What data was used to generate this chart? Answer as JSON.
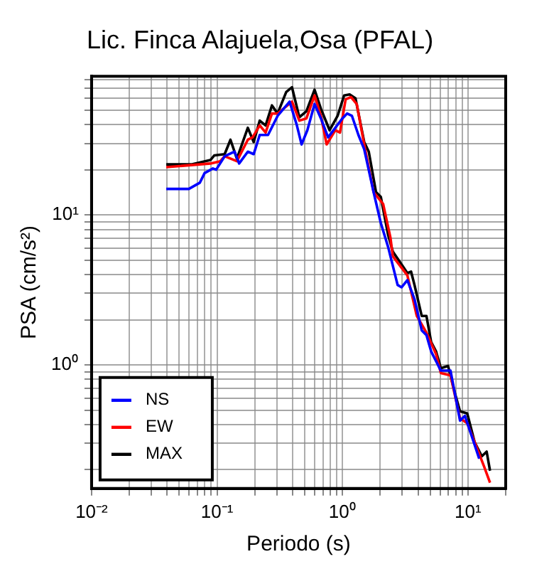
{
  "chart_data": {
    "type": "line",
    "title": "Lic. Finca Alajuela,Osa (PFAL)",
    "xlabel": "Periodo (s)",
    "ylabel": "PSA (cm/s²)",
    "log": "xy",
    "grid": true,
    "legend": "bottom left",
    "xlim": [
      0.01,
      20
    ],
    "ylim": [
      0.15,
      84
    ],
    "xticks": [
      {
        "value": 0.01,
        "label": "10⁻²"
      },
      {
        "value": 0.02,
        "label": null
      },
      {
        "value": 0.03,
        "label": null
      },
      {
        "value": 0.04,
        "label": null
      },
      {
        "value": 0.05,
        "label": null
      },
      {
        "value": 0.06,
        "label": null
      },
      {
        "value": 0.07,
        "label": null
      },
      {
        "value": 0.08,
        "label": null
      },
      {
        "value": 0.09,
        "label": null
      },
      {
        "value": 0.1,
        "label": "10⁻¹"
      },
      {
        "value": 0.2,
        "label": null
      },
      {
        "value": 0.3,
        "label": null
      },
      {
        "value": 0.4,
        "label": null
      },
      {
        "value": 0.5,
        "label": null
      },
      {
        "value": 0.6,
        "label": null
      },
      {
        "value": 0.7,
        "label": null
      },
      {
        "value": 0.8,
        "label": null
      },
      {
        "value": 0.9,
        "label": null
      },
      {
        "value": 1,
        "label": "10⁰"
      },
      {
        "value": 2,
        "label": null
      },
      {
        "value": 3,
        "label": null
      },
      {
        "value": 4,
        "label": null
      },
      {
        "value": 5,
        "label": null
      },
      {
        "value": 6,
        "label": null
      },
      {
        "value": 7,
        "label": null
      },
      {
        "value": 8,
        "label": null
      },
      {
        "value": 9,
        "label": null
      },
      {
        "value": 10,
        "label": "10¹"
      },
      {
        "value": 20,
        "label": null
      }
    ],
    "yticks": [
      {
        "value": 0.2,
        "label": null
      },
      {
        "value": 0.3,
        "label": null
      },
      {
        "value": 0.4,
        "label": null
      },
      {
        "value": 0.5,
        "label": null
      },
      {
        "value": 0.6,
        "label": null
      },
      {
        "value": 0.7,
        "label": null
      },
      {
        "value": 0.8,
        "label": null
      },
      {
        "value": 0.9,
        "label": null
      },
      {
        "value": 1,
        "label": "10⁰"
      },
      {
        "value": 2,
        "label": null
      },
      {
        "value": 3,
        "label": null
      },
      {
        "value": 4,
        "label": null
      },
      {
        "value": 5,
        "label": null
      },
      {
        "value": 6,
        "label": null
      },
      {
        "value": 7,
        "label": null
      },
      {
        "value": 8,
        "label": null
      },
      {
        "value": 9,
        "label": null
      },
      {
        "value": 10,
        "label": "10¹"
      },
      {
        "value": 20,
        "label": null
      },
      {
        "value": 30,
        "label": null
      },
      {
        "value": 40,
        "label": null
      },
      {
        "value": 50,
        "label": null
      },
      {
        "value": 60,
        "label": null
      },
      {
        "value": 70,
        "label": null
      },
      {
        "value": 80,
        "label": null
      }
    ],
    "series": [
      {
        "name": "NS",
        "color": "#0000ff",
        "x": [
          0.0394,
          0.0596,
          0.073,
          0.0796,
          0.0927,
          0.0984,
          0.115,
          0.138,
          0.15,
          0.176,
          0.196,
          0.219,
          0.255,
          0.304,
          0.379,
          0.433,
          0.472,
          0.525,
          0.599,
          0.673,
          0.768,
          0.877,
          1.0,
          1.09,
          1.19,
          1.34,
          1.49,
          1.77,
          2.02,
          2.31,
          2.75,
          2.96,
          3.29,
          3.75,
          4.28,
          4.67,
          5.09,
          6.08,
          7.26,
          8.65,
          9.46,
          10.8,
          12.3
        ],
        "values": [
          14.9,
          14.9,
          16.4,
          19,
          20.4,
          20,
          24.6,
          26.4,
          22,
          26.4,
          25.4,
          34.1,
          34.1,
          45.7,
          56.9,
          39.5,
          29.5,
          36.7,
          54.8,
          44,
          32.9,
          38.1,
          44,
          47.4,
          45.7,
          34.1,
          27.4,
          14.2,
          8.83,
          6.12,
          3.41,
          3.29,
          3.67,
          2.74,
          1.7,
          1.58,
          1.23,
          0.916,
          0.916,
          0.425,
          0.457,
          0.329,
          0.237
        ]
      },
      {
        "name": "EW",
        "color": "#ff0000",
        "x": [
          0.0394,
          0.0885,
          0.106,
          0.115,
          0.144,
          0.176,
          0.192,
          0.219,
          0.244,
          0.274,
          0.304,
          0.396,
          0.453,
          0.516,
          0.599,
          0.673,
          0.748,
          0.877,
          0.955,
          1.06,
          1.17,
          1.3,
          1.49,
          1.77,
          2.11,
          2.41,
          2.52,
          3.29,
          3.91,
          4.67,
          5.57,
          6.08,
          7.26,
          8.65,
          9.87,
          11.3,
          13.4,
          15.0
        ],
        "values": [
          20.8,
          22,
          22.8,
          24.6,
          22.8,
          31.7,
          32.9,
          39.5,
          35.4,
          47.4,
          47.4,
          56.9,
          42.5,
          44,
          62.5,
          45.7,
          29.5,
          36.7,
          35.4,
          59,
          61,
          54.8,
          29.5,
          14.2,
          11.8,
          7.08,
          5.29,
          3.95,
          2.12,
          1.64,
          1.18,
          0.883,
          0.851,
          0.441,
          0.409,
          0.306,
          0.212,
          0.164
        ]
      },
      {
        "name": "MAX",
        "color": "#000000",
        "x": [
          0.0394,
          0.0623,
          0.0885,
          0.095,
          0.115,
          0.128,
          0.144,
          0.176,
          0.196,
          0.219,
          0.244,
          0.274,
          0.304,
          0.356,
          0.396,
          0.453,
          0.516,
          0.599,
          0.673,
          0.789,
          0.914,
          1.03,
          1.14,
          1.27,
          1.49,
          1.62,
          1.85,
          2.02,
          2.31,
          2.52,
          3.01,
          3.29,
          3.52,
          3.75,
          4.28,
          4.67,
          5.09,
          5.57,
          6.08,
          6.94,
          7.93,
          8.65,
          9.87,
          11.3,
          12.9,
          14.1,
          15.0
        ],
        "values": [
          21.7,
          21.7,
          23.2,
          24.9,
          25.4,
          31.7,
          23.7,
          38.1,
          30.6,
          42.5,
          39.5,
          53.7,
          47.4,
          65.9,
          70.9,
          44.7,
          49.1,
          68.3,
          51,
          36.7,
          45.7,
          62.5,
          63.5,
          59.8,
          30.6,
          26.4,
          14.2,
          13.2,
          7.36,
          5.69,
          4.57,
          4.09,
          4.19,
          3.41,
          2.12,
          2.12,
          1.42,
          1.23,
          0.95,
          0.985,
          0.635,
          0.491,
          0.475,
          0.306,
          0.246,
          0.264,
          0.197
        ]
      }
    ]
  }
}
